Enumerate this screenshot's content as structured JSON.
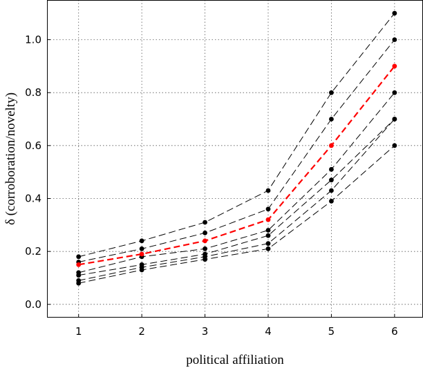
{
  "chart_data": {
    "type": "line",
    "title": "",
    "xlabel": "political affiliation",
    "ylabel": "δ (corroboration/novelty)",
    "x": [
      1,
      2,
      3,
      4,
      5,
      6
    ],
    "xlim": [
      0.5,
      6.45
    ],
    "ylim": [
      -0.05,
      1.15
    ],
    "xticks": [
      "1",
      "2",
      "3",
      "4",
      "5",
      "6"
    ],
    "yticks": [
      {
        "value": 0.0,
        "label": "0.0"
      },
      {
        "value": 0.2,
        "label": "0.2"
      },
      {
        "value": 0.4,
        "label": "0.4"
      },
      {
        "value": 0.6,
        "label": "0.6"
      },
      {
        "value": 0.8,
        "label": "0.8"
      },
      {
        "value": 1.0,
        "label": "1.0"
      }
    ],
    "grid": true,
    "colors": {
      "highlight": "#ff0000",
      "series": "#000000"
    },
    "series": [
      {
        "values": [
          0.18,
          0.24,
          0.31,
          0.43,
          0.8,
          1.1
        ],
        "color": "#000000",
        "highlight": false
      },
      {
        "values": [
          0.16,
          0.21,
          0.27,
          0.36,
          0.7,
          1.0
        ],
        "color": "#000000",
        "highlight": false
      },
      {
        "values": [
          0.12,
          0.18,
          0.21,
          0.28,
          0.51,
          0.8
        ],
        "color": "#000000",
        "highlight": false
      },
      {
        "values": [
          0.11,
          0.15,
          0.19,
          0.26,
          0.47,
          0.7
        ],
        "color": "#000000",
        "highlight": false
      },
      {
        "values": [
          0.09,
          0.14,
          0.18,
          0.23,
          0.43,
          0.7
        ],
        "color": "#000000",
        "highlight": false
      },
      {
        "values": [
          0.08,
          0.13,
          0.17,
          0.21,
          0.39,
          0.6
        ],
        "color": "#000000",
        "highlight": false
      },
      {
        "values": [
          0.15,
          0.19,
          0.24,
          0.32,
          0.6,
          0.9
        ],
        "color": "#ff0000",
        "highlight": true
      }
    ]
  }
}
